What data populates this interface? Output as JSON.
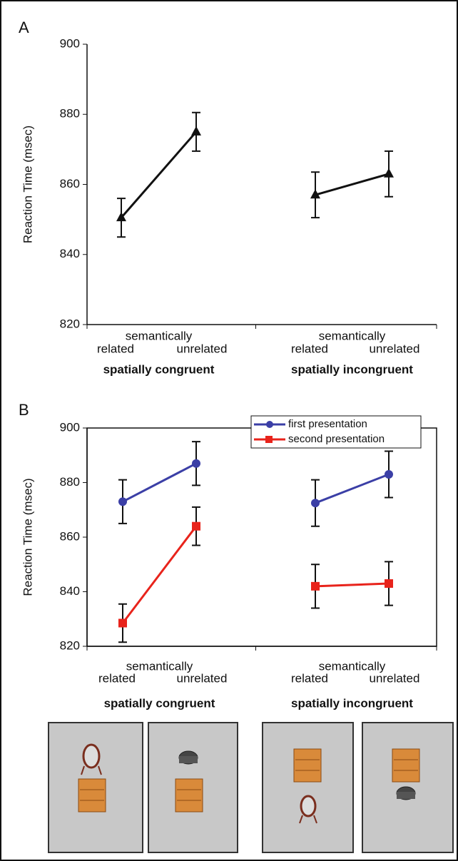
{
  "chart_data": [
    {
      "type": "line",
      "title": "A",
      "y_label": "Reaction Time (msec)",
      "categories": [
        "related",
        "unrelated",
        "related",
        "unrelated"
      ],
      "group_labels": [
        "spatially congruent",
        "spatially incongruent"
      ],
      "group_sublabels": [
        "semantically",
        "semantically"
      ],
      "ylim": [
        820,
        900
      ],
      "yticks": [
        820,
        840,
        860,
        880,
        900
      ],
      "frame": false,
      "series": [
        {
          "color": "#111111",
          "marker": "triangle",
          "values": [
            850.5,
            875,
            857,
            863
          ],
          "errors": [
            5.5,
            5.5,
            6.5,
            6.5
          ]
        }
      ]
    },
    {
      "type": "line",
      "title": "B",
      "y_label": "Reaction Time (msec)",
      "categories": [
        "related",
        "unrelated",
        "related",
        "unrelated"
      ],
      "group_labels": [
        "spatially congruent",
        "spatially incongruent"
      ],
      "group_sublabels": [
        "semantically",
        "semantically"
      ],
      "ylim": [
        820,
        900
      ],
      "yticks": [
        820,
        840,
        860,
        880,
        900
      ],
      "frame": true,
      "legend": "upper right",
      "series": [
        {
          "name": "first presentation",
          "color": "#3b3fa6",
          "marker": "circle",
          "values": [
            873,
            887,
            872.5,
            883
          ],
          "errors": [
            8,
            8,
            8.5,
            8.5
          ]
        },
        {
          "name": "second presentation",
          "color": "#e8231b",
          "marker": "square",
          "values": [
            828.5,
            864,
            842,
            843
          ],
          "errors": [
            7,
            7,
            8,
            8
          ]
        }
      ]
    }
  ]
}
